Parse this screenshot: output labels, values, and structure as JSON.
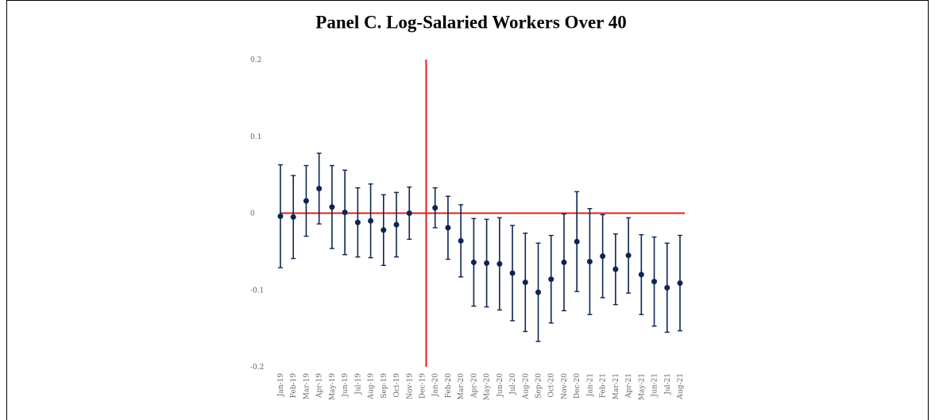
{
  "chart_data": {
    "type": "errorbar",
    "title": "Panel C. Log-Salaried Workers Over 40",
    "categories": [
      "Jan-19",
      "Feb-19",
      "Mar-19",
      "Apr-19",
      "May-19",
      "Jun-19",
      "Jul-19",
      "Aug-19",
      "Sep-19",
      "Oct-19",
      "Nov-19",
      "Dec-19",
      "Jan-20",
      "Feb-20",
      "Mar-20",
      "Apr-20",
      "May-20",
      "Jun-20",
      "Jul-20",
      "Aug-20",
      "Sep-20",
      "Oct-20",
      "Nov-20",
      "Dec-20",
      "Jan-21",
      "Feb-21",
      "Mar-21",
      "Apr-21",
      "May-21",
      "Jun-21",
      "Jul-21",
      "Aug-21"
    ],
    "values": [
      -0.004,
      -0.005,
      0.016,
      0.032,
      0.008,
      0.001,
      -0.012,
      -0.01,
      -0.022,
      -0.015,
      0.0,
      null,
      0.007,
      -0.019,
      -0.036,
      -0.064,
      -0.065,
      -0.066,
      -0.078,
      -0.09,
      -0.103,
      -0.086,
      -0.064,
      -0.037,
      -0.063,
      -0.056,
      -0.073,
      -0.055,
      -0.08,
      -0.089,
      -0.097,
      -0.091
    ],
    "errors": [
      0.067,
      0.054,
      0.046,
      0.046,
      0.054,
      0.055,
      0.045,
      0.048,
      0.046,
      0.042,
      0.034,
      null,
      0.026,
      0.041,
      0.047,
      0.057,
      0.057,
      0.06,
      0.062,
      0.064,
      0.064,
      0.057,
      0.063,
      0.065,
      0.069,
      0.054,
      0.046,
      0.049,
      0.052,
      0.058,
      0.058,
      0.062
    ],
    "color": "#0d2550",
    "ylim": [
      -0.2,
      0.2
    ],
    "yticks": [
      0.2,
      0.1,
      0,
      -0.1,
      -0.2
    ],
    "reference_lines": {
      "x": "Dec-19",
      "y": 0,
      "color": "#e02020"
    }
  }
}
